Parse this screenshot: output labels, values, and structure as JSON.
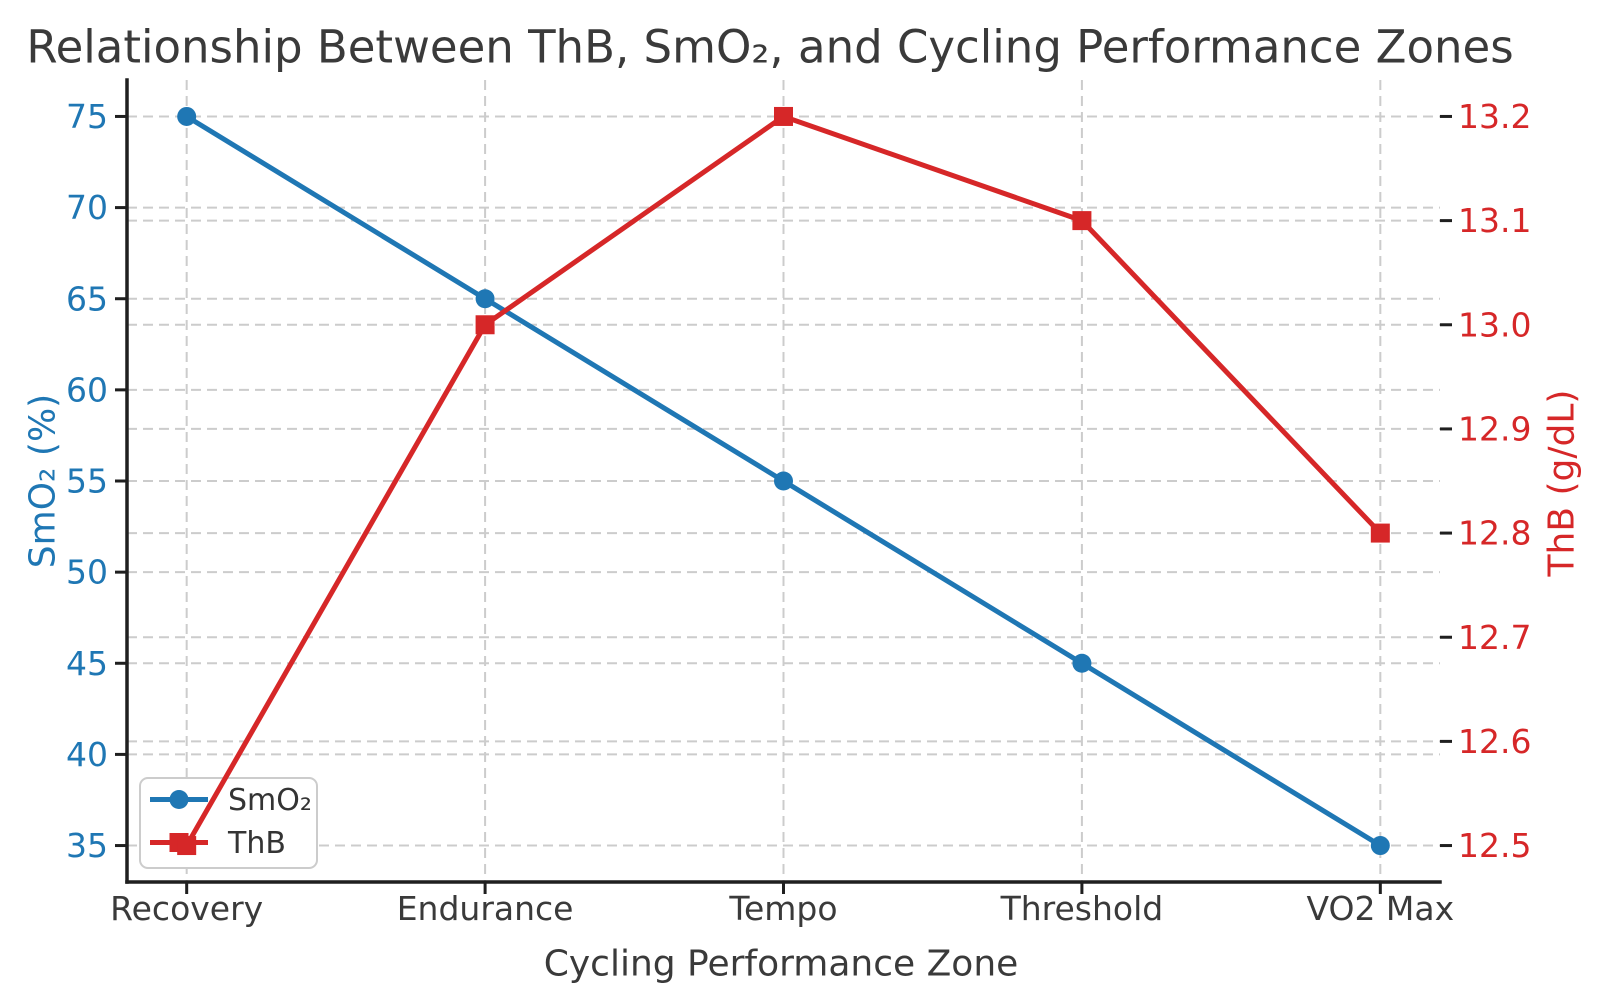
{
  "chart_data": {
    "type": "line",
    "title": "Relationship Between ThB, SmO₂, and Cycling Performance Zones",
    "xlabel": "Cycling Performance Zone",
    "categories": [
      "Recovery",
      "Endurance",
      "Tempo",
      "Threshold",
      "VO2 Max"
    ],
    "series": [
      {
        "name": "SmO₂",
        "axis": "left",
        "marker": "circle",
        "color": "#1f77b4",
        "values": [
          75,
          65,
          55,
          45,
          35
        ]
      },
      {
        "name": "ThB",
        "axis": "right",
        "marker": "square",
        "color": "#d62728",
        "values": [
          12.5,
          13.0,
          13.2,
          13.1,
          12.8
        ]
      }
    ],
    "left_axis": {
      "label": "SmO₂ (%)",
      "color": "#1f77b4",
      "ticks": [
        75,
        70,
        65,
        60,
        55,
        50,
        45,
        40,
        35
      ],
      "lim": [
        33,
        77
      ],
      "tick_decimals": 0
    },
    "right_axis": {
      "label": "ThB (g/dL)",
      "color": "#d62728",
      "ticks": [
        13.2,
        13.1,
        13.0,
        12.9,
        12.8,
        12.7,
        12.6,
        12.5
      ],
      "lim": [
        12.465,
        13.235
      ],
      "tick_decimals": 1
    },
    "legend": {
      "location": "lower left",
      "entries": [
        "SmO₂",
        "ThB"
      ]
    },
    "grid": {
      "show": true,
      "style": "dashed",
      "color": "#cccccc"
    },
    "text_color": "#3a3a3a"
  }
}
